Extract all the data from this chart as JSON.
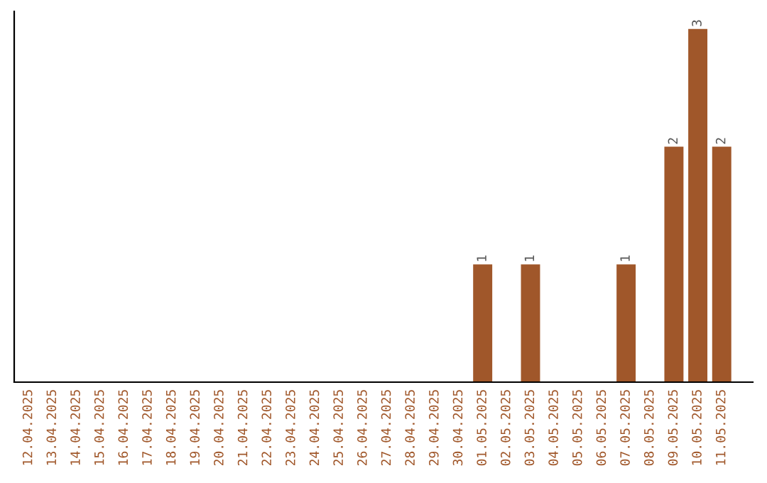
{
  "chart_data": {
    "type": "bar",
    "categories": [
      "12.04.2025",
      "13.04.2025",
      "14.04.2025",
      "15.04.2025",
      "16.04.2025",
      "17.04.2025",
      "18.04.2025",
      "19.04.2025",
      "20.04.2025",
      "21.04.2025",
      "22.04.2025",
      "23.04.2025",
      "24.04.2025",
      "25.04.2025",
      "26.04.2025",
      "27.04.2025",
      "28.04.2025",
      "29.04.2025",
      "30.04.2025",
      "01.05.2025",
      "02.05.2025",
      "03.05.2025",
      "04.05.2025",
      "05.05.2025",
      "06.05.2025",
      "07.05.2025",
      "08.05.2025",
      "09.05.2025",
      "10.05.2025",
      "11.05.2025"
    ],
    "values": [
      null,
      null,
      null,
      null,
      null,
      null,
      null,
      null,
      null,
      null,
      null,
      null,
      null,
      null,
      null,
      null,
      null,
      null,
      null,
      1,
      null,
      1,
      null,
      null,
      null,
      1,
      null,
      2,
      3,
      2
    ],
    "data_labels": true,
    "color": "#a0572a",
    "tick_labels": "x"
  }
}
